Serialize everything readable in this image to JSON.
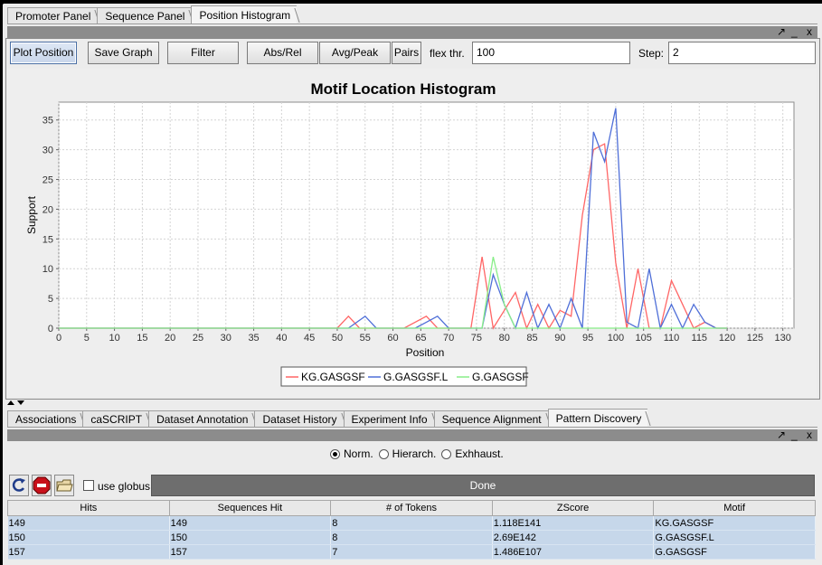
{
  "top_tabs": [
    {
      "label": "Promoter Panel",
      "selected": false
    },
    {
      "label": "Sequence Panel",
      "selected": false
    },
    {
      "label": "Position Histogram",
      "selected": true
    }
  ],
  "window_controls": {
    "maximize": "↗",
    "minimize": "_",
    "close": "x"
  },
  "toolbar": {
    "plot_position": "Plot Position",
    "save_graph": "Save Graph",
    "filter": "Filter",
    "abs_rel": "Abs/Rel",
    "avg_peak": "Avg/Peak",
    "pairs": "Pairs",
    "flex_label": "flex thr.",
    "flex_value": "100",
    "step_label": "Step:",
    "step_value": "2"
  },
  "chart_data": {
    "type": "line",
    "title": "Motif Location Histogram",
    "xlabel": "Position",
    "ylabel": "Support",
    "xlim": [
      0,
      132
    ],
    "ylim": [
      0,
      38
    ],
    "x_ticks": [
      0,
      5,
      10,
      15,
      20,
      25,
      30,
      35,
      40,
      45,
      50,
      55,
      60,
      65,
      70,
      75,
      80,
      85,
      90,
      95,
      100,
      105,
      110,
      115,
      120,
      125,
      130
    ],
    "y_ticks": [
      0,
      5,
      10,
      15,
      20,
      25,
      30,
      35
    ],
    "grid": true,
    "legend_position": "bottom",
    "series": [
      {
        "name": "KG.GASGSF",
        "color": "#ff6666",
        "points": [
          [
            0,
            0
          ],
          [
            50,
            0
          ],
          [
            52,
            2
          ],
          [
            54,
            0
          ],
          [
            60,
            0
          ],
          [
            62,
            0
          ],
          [
            66,
            2
          ],
          [
            68,
            0
          ],
          [
            74,
            0
          ],
          [
            76,
            12
          ],
          [
            78,
            0
          ],
          [
            80,
            3
          ],
          [
            82,
            6
          ],
          [
            84,
            0
          ],
          [
            86,
            4
          ],
          [
            88,
            0
          ],
          [
            90,
            3
          ],
          [
            92,
            2
          ],
          [
            94,
            19
          ],
          [
            96,
            30
          ],
          [
            98,
            31
          ],
          [
            100,
            11
          ],
          [
            102,
            0
          ],
          [
            104,
            10
          ],
          [
            106,
            0
          ],
          [
            108,
            0
          ],
          [
            110,
            8
          ],
          [
            112,
            4
          ],
          [
            114,
            0
          ],
          [
            116,
            1
          ],
          [
            118,
            0
          ],
          [
            120,
            0
          ]
        ]
      },
      {
        "name": "G.GASGSF.L",
        "color": "#4f6fd8",
        "points": [
          [
            0,
            0
          ],
          [
            52,
            0
          ],
          [
            55,
            2
          ],
          [
            57,
            0
          ],
          [
            64,
            0
          ],
          [
            66,
            1
          ],
          [
            68,
            2
          ],
          [
            70,
            0
          ],
          [
            76,
            0
          ],
          [
            78,
            9
          ],
          [
            80,
            4
          ],
          [
            82,
            0
          ],
          [
            84,
            6
          ],
          [
            86,
            0
          ],
          [
            88,
            4
          ],
          [
            90,
            0
          ],
          [
            92,
            5
          ],
          [
            94,
            0
          ],
          [
            96,
            33
          ],
          [
            98,
            28
          ],
          [
            100,
            37
          ],
          [
            102,
            1
          ],
          [
            104,
            0
          ],
          [
            106,
            10
          ],
          [
            108,
            0
          ],
          [
            110,
            4
          ],
          [
            112,
            0
          ],
          [
            114,
            4
          ],
          [
            116,
            1
          ],
          [
            118,
            0
          ],
          [
            120,
            0
          ]
        ]
      },
      {
        "name": "G.GASGSF",
        "color": "#88ee88",
        "points": [
          [
            0,
            0
          ],
          [
            76,
            0
          ],
          [
            78,
            12
          ],
          [
            80,
            4
          ],
          [
            82,
            0
          ],
          [
            120,
            0
          ]
        ]
      }
    ]
  },
  "bottom_tabs": [
    {
      "label": "Associations",
      "selected": false
    },
    {
      "label": "caSCRIPT",
      "selected": false
    },
    {
      "label": "Dataset Annotation",
      "selected": false
    },
    {
      "label": "Dataset History",
      "selected": false
    },
    {
      "label": "Experiment Info",
      "selected": false
    },
    {
      "label": "Sequence Alignment",
      "selected": false
    },
    {
      "label": "Pattern Discovery",
      "selected": true
    }
  ],
  "search_modes": [
    {
      "label": "Norm.",
      "selected": true
    },
    {
      "label": "Hierarch.",
      "selected": false
    },
    {
      "label": "Exhhaust.",
      "selected": false
    }
  ],
  "discovery_toolbar": {
    "run_icon": "refresh-arrow-icon",
    "stop_icon": "stop-sign-icon",
    "open_icon": "open-folder-icon",
    "use_globus_label": "use globus",
    "use_globus_checked": false,
    "status": "Done"
  },
  "results_table": {
    "columns": [
      "Hits",
      "Sequences Hit",
      "# of Tokens",
      "ZScore",
      "Motif"
    ],
    "rows": [
      [
        "149",
        "149",
        "8",
        "1.118E141",
        "KG.GASGSF"
      ],
      [
        "150",
        "150",
        "8",
        "2.69E142",
        "G.GASGSF.L"
      ],
      [
        "157",
        "157",
        "7",
        "1.486E107",
        "G.GASGSF"
      ]
    ]
  }
}
